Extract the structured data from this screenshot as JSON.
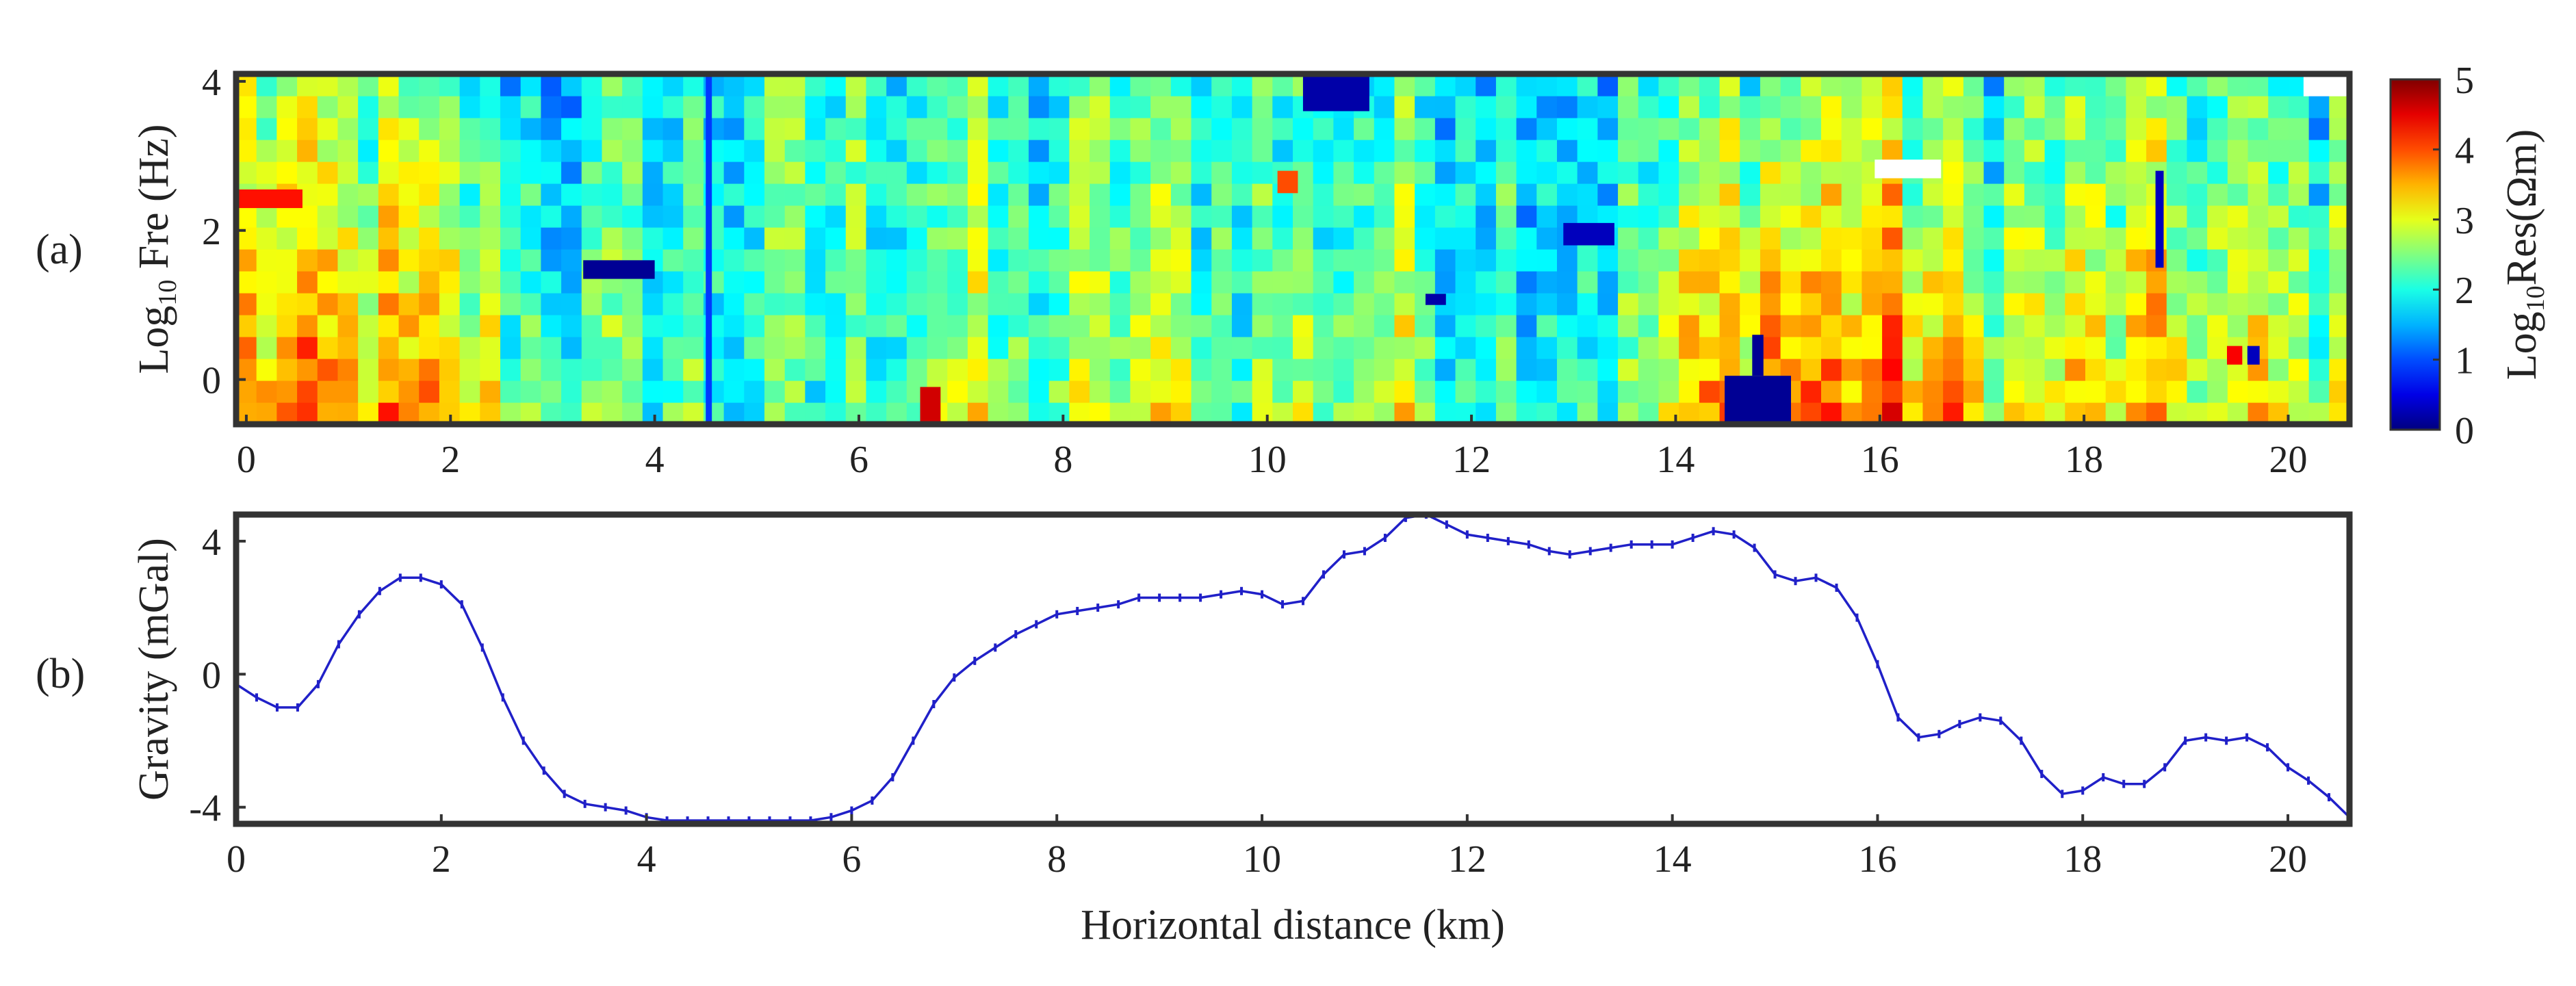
{
  "chart_data": [
    {
      "id": "a",
      "panel_label": "(a)",
      "type": "heatmap",
      "title": "",
      "xlabel": "",
      "ylabel_main": "Log",
      "ylabel_sub": "10",
      "ylabel_rest": " Fre (Hz)",
      "x_range": [
        -0.1,
        20.6
      ],
      "y_range": [
        -0.6,
        4.1
      ],
      "x_ticks": [
        0,
        2,
        4,
        6,
        8,
        10,
        12,
        14,
        16,
        18,
        20
      ],
      "x_tick_labels": [
        "0",
        "2",
        "4",
        "6",
        "8",
        "10",
        "12",
        "14",
        "16",
        "18",
        "20"
      ],
      "y_ticks": [
        0,
        2,
        4
      ],
      "y_tick_labels": [
        "0",
        "2",
        "4"
      ],
      "colorbar": {
        "label_main": "Log",
        "label_sub": "10",
        "label_rest": "Res(Ωm)",
        "range": [
          0,
          5
        ],
        "ticks": [
          0,
          1,
          2,
          3,
          4,
          5
        ],
        "tick_labels": [
          "0",
          "1",
          "2",
          "3",
          "4",
          "5"
        ],
        "colormap": "jet"
      },
      "n_cols": 104,
      "n_rows": 16,
      "background_profile_x": [
        0,
        2,
        2.8,
        4.4,
        6,
        6.8,
        7.6,
        8.6,
        10,
        11.2,
        12.4,
        13.5,
        14.5,
        16,
        17,
        18.6,
        20.6
      ],
      "background_profile_shallow": [
        3.8,
        3.4,
        2.5,
        2.3,
        2.0,
        2.9,
        2.4,
        2.9,
        2.6,
        2.9,
        2.2,
        2.3,
        4.0,
        4.0,
        3.2,
        3.3,
        2.8
      ],
      "background_profile_deep": [
        2.6,
        2.2,
        1.7,
        1.9,
        2.2,
        2.2,
        1.9,
        2.3,
        2.0,
        2.0,
        2.0,
        1.8,
        2.4,
        2.6,
        2.1,
        2.3,
        1.9
      ],
      "anomalies": [
        {
          "x": [
            -0.1,
            0.55
          ],
          "y": [
            2.3,
            2.55
          ],
          "value": 4.3
        },
        {
          "x": [
            3.3,
            4.0
          ],
          "y": [
            1.35,
            1.6
          ],
          "value": 0.1
        },
        {
          "x": [
            10.35,
            11.0
          ],
          "y": [
            3.6,
            4.1
          ],
          "value": 0.2
        },
        {
          "x": [
            11.55,
            11.75
          ],
          "y": [
            1.0,
            1.15
          ],
          "value": 0.2
        },
        {
          "x": [
            12.9,
            13.4
          ],
          "y": [
            1.8,
            2.1
          ],
          "value": 0.3
        },
        {
          "x": [
            14.48,
            15.13
          ],
          "y": [
            -0.6,
            0.05
          ],
          "value": 0.1
        },
        {
          "x": [
            14.75,
            14.86
          ],
          "y": [
            0.05,
            0.6
          ],
          "value": 0.1
        },
        {
          "x": [
            19.6,
            19.72
          ],
          "y": [
            0.2,
            0.45
          ],
          "value": 0.3
        },
        {
          "x": [
            19.4,
            19.55
          ],
          "y": [
            0.2,
            0.45
          ],
          "value": 4.4
        },
        {
          "x": [
            10.1,
            10.3
          ],
          "y": [
            2.5,
            2.8
          ],
          "value": 4.0
        },
        {
          "x": [
            6.6,
            6.8
          ],
          "y": [
            -0.6,
            -0.1
          ],
          "value": 4.6
        },
        {
          "x": [
            4.5,
            4.56
          ],
          "y": [
            -0.6,
            4.1
          ],
          "value": 0.9
        },
        {
          "x": [
            18.7,
            18.78
          ],
          "y": [
            1.5,
            2.8
          ],
          "value": 0.3
        }
      ],
      "missing_data": [
        {
          "x": [
            20.15,
            20.6
          ],
          "y": [
            3.8,
            4.1
          ]
        },
        {
          "x": [
            15.95,
            16.6
          ],
          "y": [
            2.7,
            2.95
          ]
        }
      ]
    },
    {
      "id": "b",
      "panel_label": "(b)",
      "type": "line",
      "title": "",
      "xlabel": "Horizontal distance (km)",
      "ylabel": "Gravity (mGal)",
      "x_range": [
        0,
        20.6
      ],
      "y_range": [
        -4.5,
        4.8
      ],
      "x_ticks": [
        0,
        2,
        4,
        6,
        8,
        10,
        12,
        14,
        16,
        18,
        20
      ],
      "x_tick_labels": [
        "0",
        "2",
        "4",
        "6",
        "8",
        "10",
        "12",
        "14",
        "16",
        "18",
        "20"
      ],
      "y_ticks": [
        -4,
        0,
        4
      ],
      "y_tick_labels": [
        "-4",
        "0",
        "4"
      ],
      "series_color": "#2020c8",
      "series": [
        {
          "name": "Gravity",
          "x": [
            0.0,
            0.2,
            0.4,
            0.6,
            0.8,
            1.0,
            1.2,
            1.4,
            1.6,
            1.8,
            2.0,
            2.2,
            2.4,
            2.6,
            2.8,
            3.0,
            3.2,
            3.4,
            3.6,
            3.8,
            4.0,
            4.2,
            4.4,
            4.6,
            4.8,
            5.0,
            5.2,
            5.4,
            5.6,
            5.8,
            6.0,
            6.2,
            6.4,
            6.6,
            6.8,
            7.0,
            7.2,
            7.4,
            7.6,
            7.8,
            8.0,
            8.2,
            8.4,
            8.6,
            8.8,
            9.0,
            9.2,
            9.4,
            9.6,
            9.8,
            10.0,
            10.2,
            10.4,
            10.6,
            10.8,
            11.0,
            11.2,
            11.4,
            11.6,
            11.8,
            12.0,
            12.2,
            12.4,
            12.6,
            12.8,
            13.0,
            13.2,
            13.4,
            13.6,
            13.8,
            14.0,
            14.2,
            14.4,
            14.6,
            14.8,
            15.0,
            15.2,
            15.4,
            15.6,
            15.8,
            16.0,
            16.2,
            16.4,
            16.6,
            16.8,
            17.0,
            17.2,
            17.4,
            17.6,
            17.8,
            18.0,
            18.2,
            18.4,
            18.6,
            18.8,
            19.0,
            19.2,
            19.4,
            19.6,
            19.8,
            20.0,
            20.2,
            20.4,
            20.6
          ],
          "values": [
            -0.3,
            -0.7,
            -1.0,
            -1.0,
            -0.3,
            0.9,
            1.8,
            2.5,
            2.9,
            2.9,
            2.7,
            2.1,
            0.8,
            -0.7,
            -2.0,
            -2.9,
            -3.6,
            -3.9,
            -4.0,
            -4.1,
            -4.3,
            -4.4,
            -4.4,
            -4.4,
            -4.4,
            -4.4,
            -4.4,
            -4.4,
            -4.4,
            -4.3,
            -4.1,
            -3.8,
            -3.1,
            -2.0,
            -0.9,
            -0.1,
            0.4,
            0.8,
            1.2,
            1.5,
            1.8,
            1.9,
            2.0,
            2.1,
            2.3,
            2.3,
            2.3,
            2.3,
            2.4,
            2.5,
            2.4,
            2.1,
            2.2,
            3.0,
            3.6,
            3.7,
            4.1,
            4.7,
            4.8,
            4.5,
            4.2,
            4.1,
            4.0,
            3.9,
            3.7,
            3.6,
            3.7,
            3.8,
            3.9,
            3.9,
            3.9,
            4.1,
            4.3,
            4.2,
            3.8,
            3.0,
            2.8,
            2.9,
            2.6,
            1.7,
            0.3,
            -1.3,
            -1.9,
            -1.8,
            -1.5,
            -1.3,
            -1.4,
            -2.0,
            -3.0,
            -3.6,
            -3.5,
            -3.1,
            -3.3,
            -3.3,
            -2.8,
            -2.0,
            -1.9,
            -2.0,
            -1.9,
            -2.2,
            -2.8,
            -3.2,
            -3.7,
            -4.3
          ]
        }
      ]
    }
  ]
}
